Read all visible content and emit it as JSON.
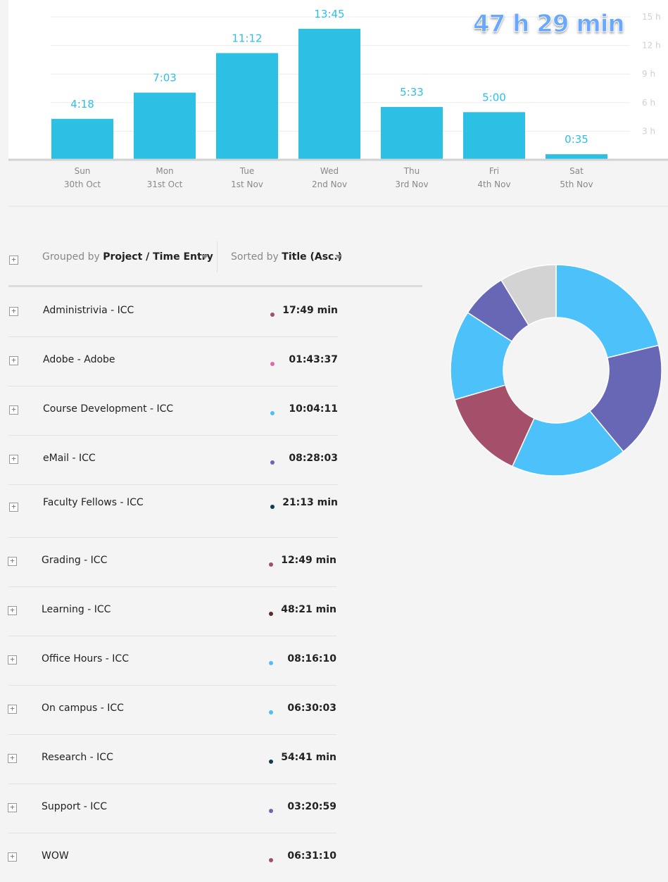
{
  "summary": {
    "total": "47 h 29 min"
  },
  "chart_data": {
    "type": "bar",
    "categories": [
      "Sun",
      "Mon",
      "Tue",
      "Wed",
      "Thu",
      "Fri",
      "Sat"
    ],
    "dates": [
      "30th Oct",
      "31st Oct",
      "1st Nov",
      "2nd Nov",
      "3rd Nov",
      "4th Nov",
      "5th Nov"
    ],
    "values": [
      4.3,
      7.05,
      11.2,
      13.75,
      5.55,
      5.0,
      0.583
    ],
    "value_labels": [
      "4:18",
      "7:03",
      "11:12",
      "13:45",
      "5:33",
      "5:00",
      "0:35"
    ],
    "y_ticks": [
      "3 h",
      "6 h",
      "9 h",
      "12 h",
      "15 h"
    ],
    "ylim": [
      0,
      15
    ],
    "grid": true,
    "bar_color": "#2cc0e5"
  },
  "controls": {
    "group_prefix": "Grouped by",
    "group_value": "Project / Time Entry",
    "sort_prefix": "Sorted by",
    "sort_value": "Title (Asc.)",
    "expand_symbol": "+"
  },
  "projects": [
    {
      "name": "Administrivia - ICC",
      "time": "17:49 min",
      "color": "#a0506a"
    },
    {
      "name": "Adobe - Adobe",
      "time": "01:43:37",
      "color": "#e06aa8"
    },
    {
      "name": "Course Development - ICC",
      "time": "10:04:11",
      "color": "#4cbff5"
    },
    {
      "name": "eMail - ICC",
      "time": "08:28:03",
      "color": "#6767b5"
    },
    {
      "name": "Faculty Fellows - ICC",
      "time": "21:13 min",
      "color": "#0d3c4e"
    },
    {
      "name": "Grading - ICC",
      "time": "12:49 min",
      "color": "#a0506a"
    },
    {
      "name": "Learning - ICC",
      "time": "48:21 min",
      "color": "#5a2a2a"
    },
    {
      "name": "Office Hours - ICC",
      "time": "08:16:10",
      "color": "#4cbff5"
    },
    {
      "name": "On campus - ICC",
      "time": "06:30:03",
      "color": "#4cbff5"
    },
    {
      "name": "Research - ICC",
      "time": "54:41 min",
      "color": "#0d3c4e"
    },
    {
      "name": "Support - ICC",
      "time": "03:20:59",
      "color": "#6767b5"
    },
    {
      "name": "WOW",
      "time": "06:31:10",
      "color": "#a0506a"
    }
  ],
  "donut": {
    "slices": [
      {
        "value": 21.2,
        "color": "#4dc1fa"
      },
      {
        "value": 17.8,
        "color": "#6767b5"
      },
      {
        "value": 17.8,
        "color": "#4dc1fa"
      },
      {
        "value": 13.7,
        "color": "#a5506b"
      },
      {
        "value": 13.7,
        "color": "#4dc1fa"
      },
      {
        "value": 7.1,
        "color": "#6767b5"
      },
      {
        "value": 8.7,
        "color": "#d3d3d3"
      }
    ]
  }
}
